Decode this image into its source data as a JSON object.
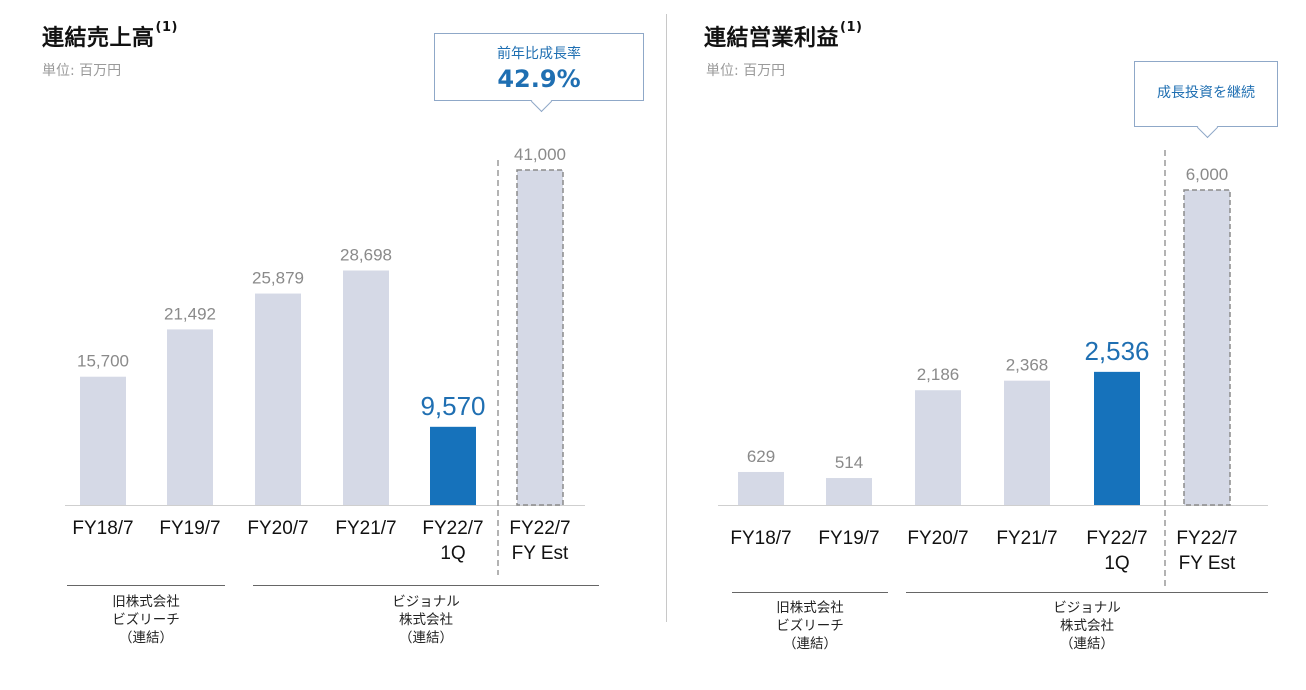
{
  "left": {
    "title": "連結売上高",
    "title_note": "(1)",
    "unit": "単位: 百万円",
    "callout": {
      "label": "前年比成長率",
      "value": "42.9%"
    },
    "groups": [
      {
        "lines": [
          "旧株式会社",
          "ビズリーチ",
          "（連結）"
        ]
      },
      {
        "lines": [
          "ビジョナル",
          "株式会社",
          "（連結）"
        ]
      }
    ]
  },
  "right": {
    "title": "連結営業利益",
    "title_note": "(1)",
    "unit": "単位: 百万円",
    "callout": {
      "label": "成長投資を継続"
    },
    "groups": [
      {
        "lines": [
          "旧株式会社",
          "ビズリーチ",
          "（連結）"
        ]
      },
      {
        "lines": [
          "ビジョナル",
          "株式会社",
          "（連結）"
        ]
      }
    ]
  },
  "colors": {
    "bar": "#d5d9e6",
    "highlight": "#1672bb",
    "label": "#8a8a8a",
    "highlight_label": "#1f6fb2",
    "estimate_border": "#8c8c8c"
  },
  "chart_data": [
    {
      "type": "bar",
      "title": "連結売上高",
      "ylabel": "単位: 百万円",
      "categories": [
        "FY18/7",
        "FY19/7",
        "FY20/7",
        "FY21/7",
        "FY22/7\n1Q",
        "FY22/7\nFY Est"
      ],
      "values": [
        15700,
        21492,
        25879,
        28698,
        9570,
        41000
      ],
      "value_labels": [
        "15,700",
        "21,492",
        "25,879",
        "28,698",
        "9,570",
        "41,000"
      ],
      "highlight_index": 4,
      "estimate_index": 5,
      "ylim": [
        0,
        41000
      ],
      "grid": false
    },
    {
      "type": "bar",
      "title": "連結営業利益",
      "ylabel": "単位: 百万円",
      "categories": [
        "FY18/7",
        "FY19/7",
        "FY20/7",
        "FY21/7",
        "FY22/7\n1Q",
        "FY22/7\nFY Est"
      ],
      "values": [
        629,
        514,
        2186,
        2368,
        2536,
        6000
      ],
      "value_labels": [
        "629",
        "514",
        "2,186",
        "2,368",
        "2,536",
        "6,000"
      ],
      "highlight_index": 4,
      "estimate_index": 5,
      "ylim": [
        0,
        6000
      ],
      "grid": false
    }
  ]
}
